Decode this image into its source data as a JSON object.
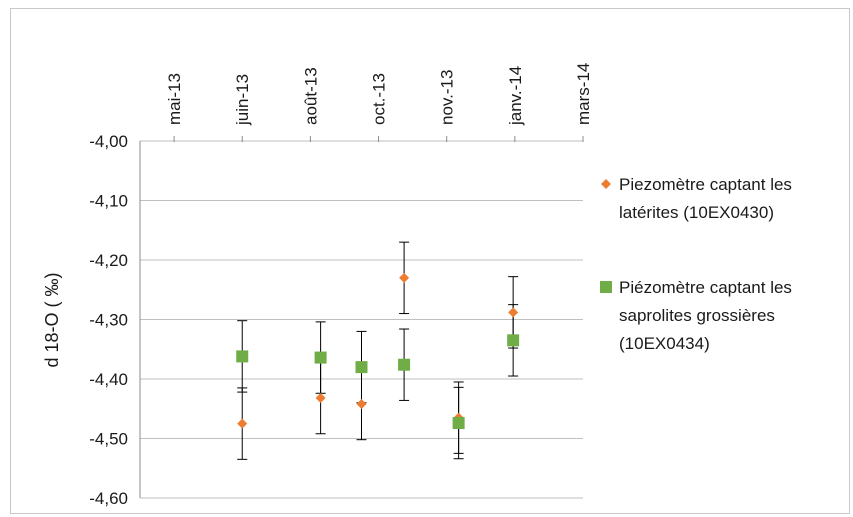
{
  "chart_data": {
    "type": "scatter",
    "title": "",
    "xlabel": "",
    "ylabel": "d 18-O ( ‰)",
    "x_axis_position": "top",
    "x_tick_labels": [
      "mai-13",
      "juin-13",
      "août-13",
      "oct.-13",
      "nov.-13",
      "janv.-14",
      "mars-14"
    ],
    "x_ticks": [
      "2013-05-01",
      "2013-06-10",
      "2013-07-20",
      "2013-08-29",
      "2013-10-08",
      "2013-11-17",
      "2013-12-27"
    ],
    "xlim": [
      "2013-04-11",
      "2013-12-27"
    ],
    "ylim": [
      -4.6,
      -4.0
    ],
    "y_ticks": [
      -4.0,
      -4.1,
      -4.2,
      -4.3,
      -4.4,
      -4.5,
      -4.6
    ],
    "y_tick_labels": [
      "-4,00",
      "-4,10",
      "-4,20",
      "-4,30",
      "-4,40",
      "-4,50",
      "-4,60"
    ],
    "y_inverted": true,
    "grid": "horizontal",
    "legend_position": "right",
    "series": [
      {
        "name": "Piezomètre captant les latérites (10EX0430)",
        "name_lines": [
          "Piezomètre captant les",
          "latérites (10EX0430)"
        ],
        "marker": "diamond",
        "color": "#ed7d31",
        "x": [
          "2013-06-10",
          "2013-07-26",
          "2013-08-19",
          "2013-09-13",
          "2013-10-15",
          "2013-11-16"
        ],
        "y": [
          -4.475,
          -4.432,
          -4.442,
          -4.23,
          -4.465,
          -4.288
        ],
        "error": [
          0.06,
          0.06,
          0.06,
          0.06,
          0.06,
          0.06
        ]
      },
      {
        "name": "Piézomètre captant les saprolites grossières (10EX0434)",
        "name_lines": [
          "Piézomètre captant les",
          "saprolites grossières",
          "(10EX0434)"
        ],
        "marker": "square",
        "color": "#70ad47",
        "x": [
          "2013-06-10",
          "2013-07-26",
          "2013-08-19",
          "2013-09-13",
          "2013-10-15",
          "2013-11-16"
        ],
        "y": [
          -4.362,
          -4.364,
          -4.38,
          -4.376,
          -4.474,
          -4.335
        ],
        "error": [
          0.06,
          0.06,
          0.06,
          0.06,
          0.06,
          0.06
        ]
      }
    ]
  }
}
